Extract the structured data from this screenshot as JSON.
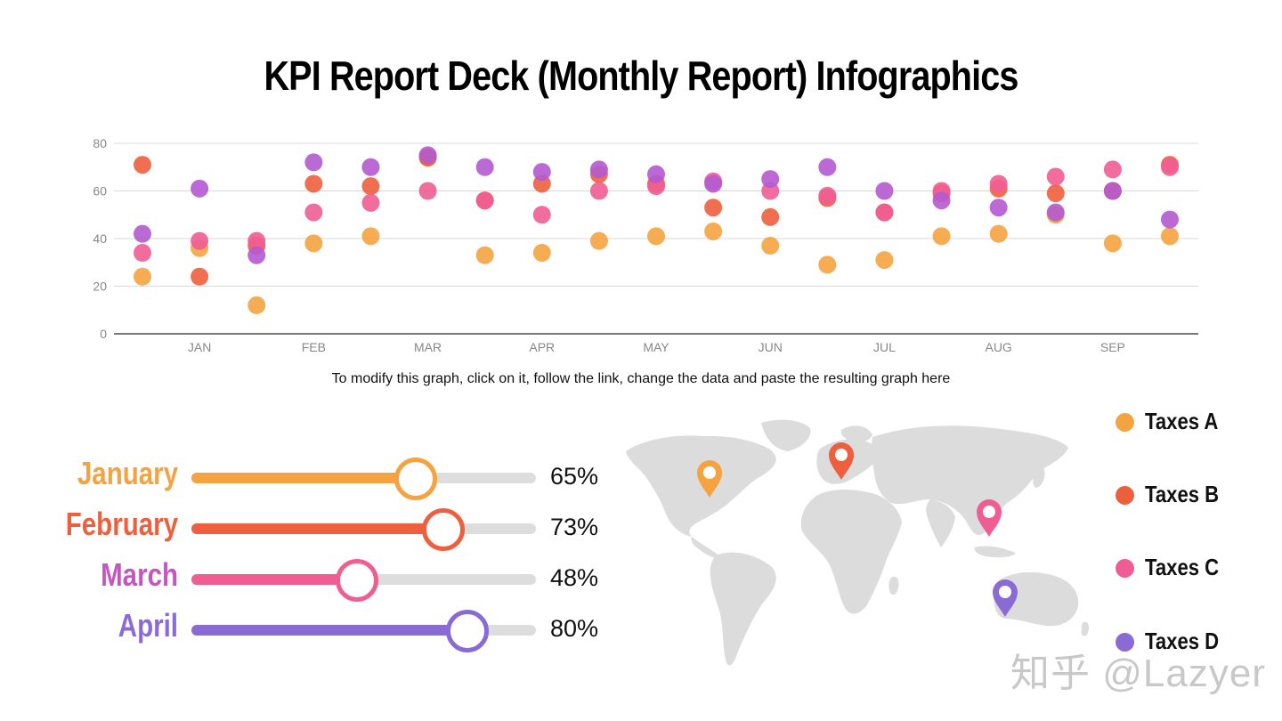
{
  "title": "KPI Report Deck (Monthly Report) Infographics",
  "note": "To modify this graph, click on it, follow the link, change the data and paste the resulting graph here",
  "chart_data": {
    "type": "scatter",
    "ylim": [
      0,
      80
    ],
    "yticks": [
      "0",
      "20",
      "40",
      "60",
      "80"
    ],
    "xticks": [
      "JAN",
      "FEB",
      "MAR",
      "APR",
      "MAY",
      "JUN",
      "JUL",
      "AUG",
      "SEP"
    ],
    "grid": true,
    "series": [
      {
        "name": "Taxes A",
        "color": "#f4a340",
        "values": [
          24,
          36,
          12,
          38,
          41,
          74,
          33,
          34,
          39,
          41,
          43,
          37,
          29,
          31,
          41,
          42,
          50,
          38,
          41
        ]
      },
      {
        "name": "Taxes B",
        "color": "#ee5f3e",
        "values": [
          71,
          24,
          37,
          63,
          62,
          74,
          56,
          63,
          67,
          63,
          53,
          49,
          57,
          51,
          59,
          61,
          59,
          60,
          71
        ]
      },
      {
        "name": "Taxes C",
        "color": "#ef5d93",
        "values": [
          34,
          39,
          39,
          51,
          55,
          60,
          56,
          50,
          60,
          62,
          64,
          60,
          58,
          51,
          60,
          63,
          66,
          69,
          70
        ]
      },
      {
        "name": "Taxes D",
        "color": "#b45ad0",
        "values": [
          42,
          61,
          33,
          72,
          70,
          75,
          70,
          68,
          69,
          67,
          63,
          65,
          70,
          60,
          56,
          53,
          51,
          60,
          48
        ]
      }
    ]
  },
  "sliders": [
    {
      "month": "January",
      "value": 65,
      "label": "65%",
      "color": "#f4a340"
    },
    {
      "month": "February",
      "value": 73,
      "label": "73%",
      "color": "#ee5f3e"
    },
    {
      "month": "March",
      "value": 48,
      "label": "48%",
      "color": "#ef5d93"
    },
    {
      "month": "April",
      "value": 80,
      "label": "80%",
      "color": "#8a6bd6"
    }
  ],
  "monthColors": [
    "#f4a340",
    "#ee5f3e",
    "#c456c0",
    "#8a6bd6"
  ],
  "legend": [
    {
      "label": "Taxes A",
      "color": "#f4a340"
    },
    {
      "label": "Taxes B",
      "color": "#ee5f3e"
    },
    {
      "label": "Taxes C",
      "color": "#ef5d93"
    },
    {
      "label": "Taxes D",
      "color": "#8a6bd6"
    }
  ],
  "map_pins": [
    {
      "region": "north-america",
      "color": "#f4a340"
    },
    {
      "region": "europe",
      "color": "#ee5f3e"
    },
    {
      "region": "southeast-asia",
      "color": "#ef5d93"
    },
    {
      "region": "australia",
      "color": "#8a6bd6"
    }
  ],
  "watermark": "知乎 @Lazyer"
}
